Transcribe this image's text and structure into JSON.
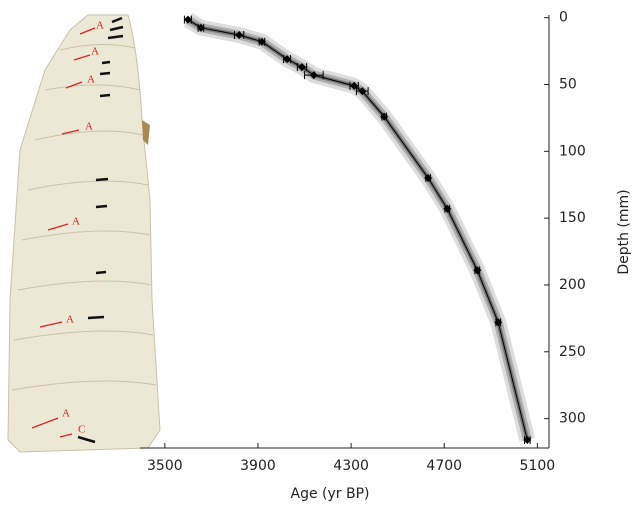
{
  "chart_data": {
    "type": "scatter",
    "x_label": "Age (yr BP)",
    "y_label": "Depth (mm)",
    "x": [
      3599,
      3655,
      3819,
      3917,
      4025,
      4089,
      4140,
      4313,
      4348,
      4442,
      4631,
      4713,
      4842,
      4932,
      5057
    ],
    "values": [
      1.5,
      7.5,
      13,
      18,
      31,
      37,
      43,
      51,
      55,
      74,
      120,
      143,
      189,
      228,
      316
    ],
    "x_errors": [
      15,
      12,
      20,
      12,
      15,
      20,
      40,
      18,
      25,
      10,
      10,
      10,
      10,
      10,
      12
    ],
    "color": "#000000",
    "xlim": [
      3200,
      5150
    ],
    "xticks": [
      3500,
      3900,
      4300,
      4700,
      5100
    ],
    "ylim": [
      -2,
      322
    ],
    "yticks": [
      0,
      50,
      100,
      150,
      200,
      250,
      300
    ],
    "y_reversed": true,
    "y_axis_side": "right",
    "annotations": [
      "A",
      "A",
      "A",
      "A",
      "A",
      "A",
      "A",
      "C"
    ]
  }
}
